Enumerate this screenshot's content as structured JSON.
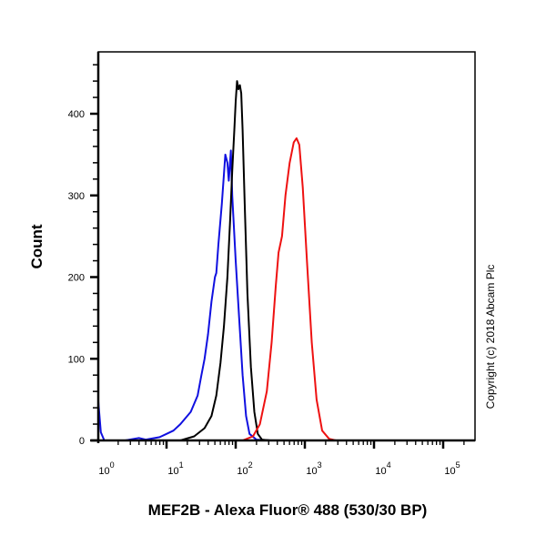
{
  "chart_data": {
    "type": "line",
    "subtype": "flow-cytometry-histogram-overlay",
    "title": "",
    "xlabel": "MEF2B - Alexa Fluor® 488 (530/30 BP)",
    "ylabel": "Count",
    "x_scale": "log",
    "xlim": [
      0.8,
      250000
    ],
    "ylim": [
      0,
      460
    ],
    "x_ticks": [
      {
        "base": "10",
        "exp": "0",
        "value": 1
      },
      {
        "base": "10",
        "exp": "1",
        "value": 10
      },
      {
        "base": "10",
        "exp": "2",
        "value": 100
      },
      {
        "base": "10",
        "exp": "3",
        "value": 1000
      },
      {
        "base": "10",
        "exp": "4",
        "value": 10000
      },
      {
        "base": "10",
        "exp": "5",
        "value": 100000
      }
    ],
    "y_ticks": [
      0,
      100,
      200,
      300,
      400
    ],
    "grid": false,
    "legend": null,
    "annotation": "Copyright (c) 2018 Abcam Plc",
    "series": [
      {
        "name": "blue",
        "color": "#1010e0",
        "points_log10x_count": [
          [
            0.0,
            48
          ],
          [
            0.05,
            10
          ],
          [
            0.1,
            0
          ],
          [
            0.4,
            0
          ],
          [
            0.6,
            3
          ],
          [
            0.7,
            1
          ],
          [
            0.9,
            4
          ],
          [
            1.0,
            8
          ],
          [
            1.1,
            12
          ],
          [
            1.2,
            20
          ],
          [
            1.35,
            35
          ],
          [
            1.45,
            55
          ],
          [
            1.5,
            78
          ],
          [
            1.55,
            100
          ],
          [
            1.6,
            130
          ],
          [
            1.65,
            170
          ],
          [
            1.7,
            200
          ],
          [
            1.72,
            205
          ],
          [
            1.75,
            240
          ],
          [
            1.8,
            290
          ],
          [
            1.85,
            350
          ],
          [
            1.88,
            340
          ],
          [
            1.9,
            318
          ],
          [
            1.93,
            355
          ],
          [
            1.95,
            300
          ],
          [
            2.0,
            220
          ],
          [
            2.05,
            150
          ],
          [
            2.1,
            80
          ],
          [
            2.15,
            30
          ],
          [
            2.2,
            8
          ],
          [
            2.3,
            1
          ],
          [
            2.5,
            0
          ],
          [
            5.4,
            0
          ]
        ]
      },
      {
        "name": "black",
        "color": "#000000",
        "points_log10x_count": [
          [
            0.1,
            0
          ],
          [
            1.2,
            0
          ],
          [
            1.4,
            5
          ],
          [
            1.55,
            15
          ],
          [
            1.65,
            30
          ],
          [
            1.72,
            55
          ],
          [
            1.78,
            95
          ],
          [
            1.83,
            140
          ],
          [
            1.88,
            200
          ],
          [
            1.92,
            270
          ],
          [
            1.95,
            330
          ],
          [
            1.98,
            380
          ],
          [
            2.0,
            415
          ],
          [
            2.02,
            440
          ],
          [
            2.04,
            430
          ],
          [
            2.06,
            435
          ],
          [
            2.08,
            425
          ],
          [
            2.1,
            380
          ],
          [
            2.13,
            290
          ],
          [
            2.17,
            180
          ],
          [
            2.22,
            90
          ],
          [
            2.27,
            35
          ],
          [
            2.32,
            8
          ],
          [
            2.38,
            1
          ],
          [
            2.5,
            0
          ],
          [
            5.4,
            0
          ]
        ]
      },
      {
        "name": "red",
        "color": "#ee1111",
        "points_log10x_count": [
          [
            0.0,
            0
          ],
          [
            2.1,
            0
          ],
          [
            2.25,
            5
          ],
          [
            2.35,
            20
          ],
          [
            2.45,
            60
          ],
          [
            2.52,
            120
          ],
          [
            2.58,
            190
          ],
          [
            2.62,
            230
          ],
          [
            2.67,
            250
          ],
          [
            2.72,
            300
          ],
          [
            2.78,
            340
          ],
          [
            2.84,
            365
          ],
          [
            2.88,
            370
          ],
          [
            2.92,
            362
          ],
          [
            2.97,
            310
          ],
          [
            3.03,
            220
          ],
          [
            3.1,
            120
          ],
          [
            3.17,
            50
          ],
          [
            3.25,
            12
          ],
          [
            3.35,
            2
          ],
          [
            3.45,
            0
          ],
          [
            5.4,
            0
          ]
        ]
      }
    ]
  }
}
